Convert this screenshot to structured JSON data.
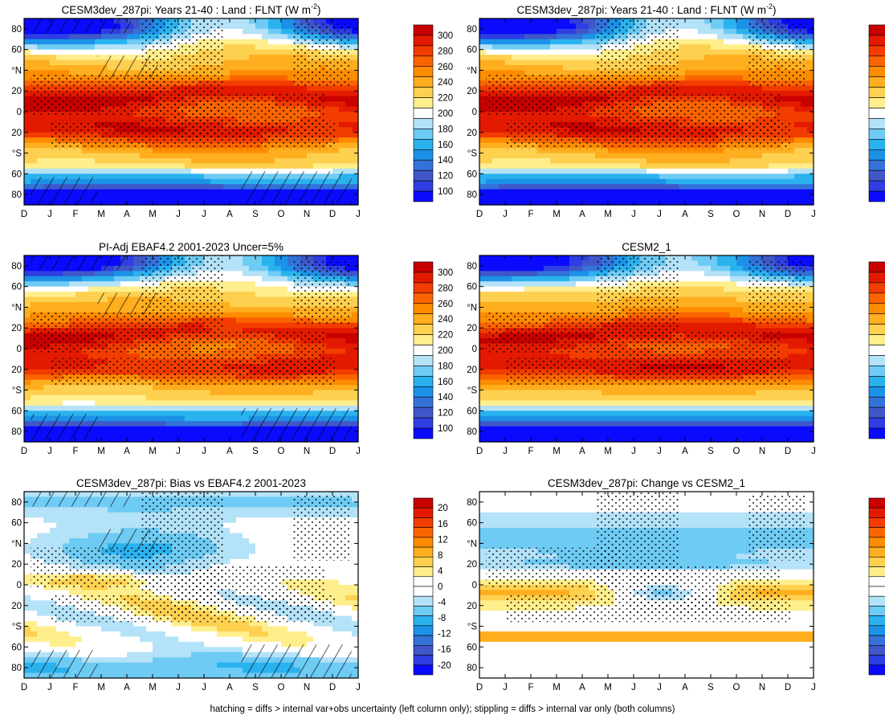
{
  "chart_data": [
    {
      "type": "heatmap",
      "title": "CESM3dev_287pi: Years 21-40 : Land : FLNT (W m⁻²)",
      "title_main": "CESM3dev_287pi: Years 21-40 : Land : FLNT (W m",
      "title_sup": "-2",
      "title_tail": ")",
      "colorbar": "flnt",
      "field": "flnt_model",
      "overlay": "hatch+stipple"
    },
    {
      "type": "heatmap",
      "title": "CESM3dev_287pi: Years 21-40 : Land : FLNT (W m⁻²)",
      "title_main": "CESM3dev_287pi: Years 21-40 : Land : FLNT (W m",
      "title_sup": "-2",
      "title_tail": ")",
      "colorbar": "flnt",
      "field": "flnt_model",
      "overlay": "stipple"
    },
    {
      "type": "heatmap",
      "title": "PI-Adj EBAF4.2 2001-2023 Uncer=5%",
      "title_main": "PI-Adj EBAF4.2 2001-2023 Uncer=5%",
      "title_sup": "",
      "title_tail": "",
      "colorbar": "flnt",
      "field": "flnt_obs",
      "overlay": "hatch+stipple"
    },
    {
      "type": "heatmap",
      "title": "CESM2_1",
      "title_main": "CESM2_1",
      "title_sup": "",
      "title_tail": "",
      "colorbar": "flnt",
      "field": "flnt_cesm2",
      "overlay": "stipple"
    },
    {
      "type": "heatmap",
      "title": "CESM3dev_287pi: Bias vs EBAF4.2 2001-2023",
      "title_main": "CESM3dev_287pi: Bias vs EBAF4.2 2001-2023",
      "title_sup": "",
      "title_tail": "",
      "colorbar": "diff",
      "field": "bias",
      "overlay": "hatch+stipple"
    },
    {
      "type": "heatmap",
      "title": "CESM3dev_287pi: Change vs CESM2_1",
      "title_main": "CESM3dev_287pi: Change vs CESM2_1",
      "title_sup": "",
      "title_tail": "",
      "colorbar": "diff",
      "field": "change",
      "overlay": "stipple"
    }
  ],
  "axes": {
    "xticks": [
      "D",
      "J",
      "F",
      "M",
      "A",
      "M",
      "J",
      "J",
      "A",
      "S",
      "O",
      "N",
      "D",
      "J"
    ],
    "ylim": [
      -90,
      90
    ],
    "yticks": [
      {
        "lat": 80,
        "label": "80"
      },
      {
        "lat": 60,
        "label": "60"
      },
      {
        "lat": 40,
        "label": "°N"
      },
      {
        "lat": 20,
        "label": "20"
      },
      {
        "lat": 0,
        "label": "0"
      },
      {
        "lat": -20,
        "label": "20"
      },
      {
        "lat": -40,
        "label": "°S"
      },
      {
        "lat": -60,
        "label": "60"
      },
      {
        "lat": -80,
        "label": "80"
      }
    ]
  },
  "colorbars": {
    "flnt": {
      "labels": [
        "300",
        "280",
        "260",
        "240",
        "220",
        "200",
        "180",
        "160",
        "140",
        "120",
        "100"
      ],
      "colors": [
        "#c80000",
        "#e31a00",
        "#f23c00",
        "#fa6400",
        "#fd8c00",
        "#feae1e",
        "#fed050",
        "#ffee8c",
        "#ffffff",
        "#b4e2f8",
        "#6ecbf4",
        "#2ab2ee",
        "#1b92e8",
        "#3372d9",
        "#3f57c9",
        "#2e3ee2",
        "#0a0aff"
      ]
    },
    "diff": {
      "labels": [
        "20",
        "16",
        "12",
        "8",
        "4",
        "0",
        "-4",
        "-8",
        "-12",
        "-16",
        "-20"
      ],
      "colors": [
        "#c80000",
        "#e31a00",
        "#f23c00",
        "#fa6400",
        "#fd8c00",
        "#feae1e",
        "#fed050",
        "#ffee8c",
        "#ffffff",
        "#ffffff",
        "#b4e2f8",
        "#6ecbf4",
        "#2ab2ee",
        "#1b92e8",
        "#3372d9",
        "#3f57c9",
        "#2e3ee2",
        "#0a0aff"
      ]
    }
  },
  "footer": "hatching = diffs > internal var+obs uncertainty (left column only); stippling = diffs > internal var only (both columns)"
}
